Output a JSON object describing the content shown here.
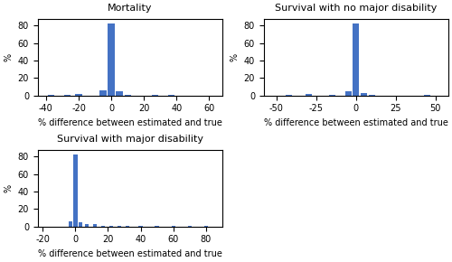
{
  "chart_data": [
    {
      "type": "bar",
      "title": "Mortality",
      "xlabel": "% difference between estimated and true",
      "ylabel": "%",
      "x": [
        -37,
        -27,
        -20,
        -5,
        0,
        5,
        10,
        27,
        37
      ],
      "values": [
        0.4,
        0.4,
        2.0,
        5.5,
        82.0,
        4.5,
        0.5,
        0.4,
        0.4
      ],
      "color": "#4472C4",
      "xlim": [
        -45,
        68
      ],
      "ylim": [
        0,
        88
      ],
      "xticks": [
        -40,
        -20,
        0,
        20,
        40,
        60
      ],
      "yticks": [
        0,
        20,
        40,
        60,
        80
      ]
    },
    {
      "type": "bar",
      "title": "Survival with no major disability",
      "xlabel": "% difference between estimated and true",
      "ylabel": "%",
      "x": [
        -42,
        -30,
        -15,
        -5,
        0,
        5,
        10,
        45
      ],
      "values": [
        0.5,
        2.0,
        0.5,
        4.5,
        82.0,
        2.5,
        0.5,
        0.8
      ],
      "color": "#4472C4",
      "xlim": [
        -58,
        58
      ],
      "ylim": [
        0,
        88
      ],
      "xticks": [
        -50,
        -25,
        0,
        25,
        50
      ],
      "yticks": [
        0,
        20,
        40,
        60,
        80
      ]
    },
    {
      "type": "bar",
      "title": "Survival with major disability",
      "xlabel": "% difference between estimated and true",
      "ylabel": "%",
      "x": [
        -3,
        0,
        3,
        7,
        12,
        17,
        22,
        27,
        32,
        40,
        50,
        60,
        70,
        80
      ],
      "values": [
        5.5,
        82.0,
        5.0,
        3.0,
        2.5,
        1.0,
        0.6,
        0.5,
        0.4,
        0.4,
        0.4,
        0.4,
        0.4,
        0.4
      ],
      "color": "#4472C4",
      "xlim": [
        -23,
        90
      ],
      "ylim": [
        0,
        88
      ],
      "xticks": [
        -20,
        0,
        20,
        40,
        60,
        80
      ],
      "yticks": [
        0,
        20,
        40,
        60,
        80
      ]
    }
  ]
}
